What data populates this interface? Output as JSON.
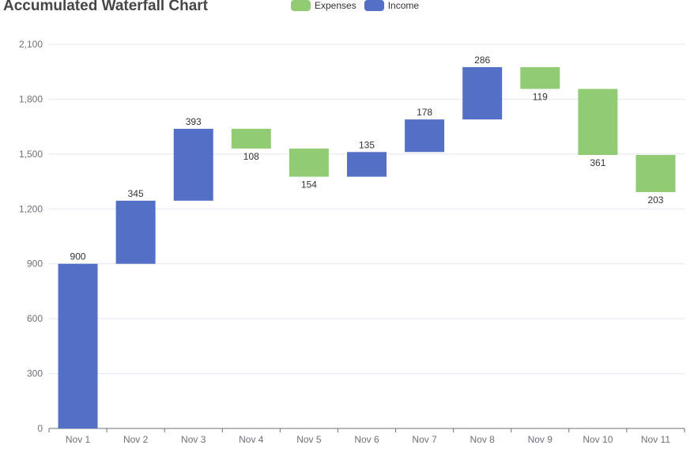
{
  "page": {
    "title": "Accumulated Waterfall Chart"
  },
  "legend": {
    "items": [
      {
        "label": "Expenses",
        "color": "#91cc75"
      },
      {
        "label": "Income",
        "color": "#5470c6"
      }
    ]
  },
  "chart_data": {
    "type": "bar",
    "stacked": true,
    "title": "Accumulated Waterfall Chart",
    "categories": [
      "Nov 1",
      "Nov 2",
      "Nov 3",
      "Nov 4",
      "Nov 5",
      "Nov 6",
      "Nov 7",
      "Nov 8",
      "Nov 9",
      "Nov 10",
      "Nov 11"
    ],
    "series": [
      {
        "name": "Income",
        "color": "#5470c6",
        "values": [
          900,
          345,
          393,
          null,
          null,
          135,
          178,
          286,
          null,
          null,
          null
        ]
      },
      {
        "name": "Expenses",
        "color": "#91cc75",
        "values": [
          null,
          null,
          null,
          108,
          154,
          null,
          null,
          null,
          119,
          361,
          203
        ]
      }
    ],
    "base": [
      0,
      900,
      1245,
      1530,
      1376,
      1376,
      1511,
      1689,
      1856,
      1495,
      1292
    ],
    "ylim": [
      0,
      2100
    ],
    "yticks": [
      0,
      300,
      600,
      900,
      1200,
      1500,
      1800,
      2100
    ],
    "ytick_labels": [
      "0",
      "300",
      "600",
      "900",
      "1,200",
      "1,500",
      "1,800",
      "2,100"
    ],
    "grid": true,
    "legend_position": "top-center"
  }
}
